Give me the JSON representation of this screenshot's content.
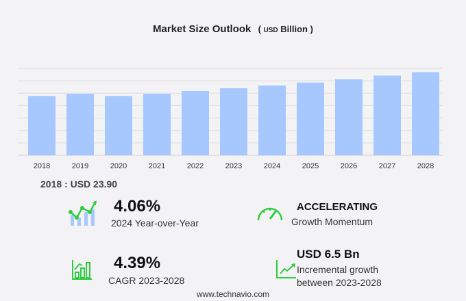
{
  "chart_data": {
    "type": "bar",
    "title": "Market Size Outlook",
    "unit_prefix": "USD",
    "unit": "Billion",
    "categories": [
      "2018",
      "2019",
      "2020",
      "2021",
      "2022",
      "2023",
      "2024",
      "2025",
      "2026",
      "2027",
      "2028"
    ],
    "values": [
      23.9,
      24.8,
      23.9,
      24.8,
      25.9,
      27.0,
      28.1,
      29.3,
      30.6,
      32.1,
      33.5
    ],
    "ylim": [
      0,
      35
    ],
    "grid": true,
    "bar_color": "#a6c8ff"
  },
  "base_label": "2018 : USD  23.90",
  "kpis": {
    "yoy": {
      "value": "4.06%",
      "label": "2024 Year-over-Year"
    },
    "momentum": {
      "value": "ACCELERATING",
      "label": "Growth Momentum"
    },
    "cagr": {
      "value": "4.39%",
      "label": "CAGR 2023-2028"
    },
    "incremental": {
      "value": "USD 6.5 Bn",
      "label1": "Incremental growth",
      "label2": "between 2023-2028"
    }
  },
  "accent_color": "#2ecc40",
  "footer": "www.technavio.com"
}
